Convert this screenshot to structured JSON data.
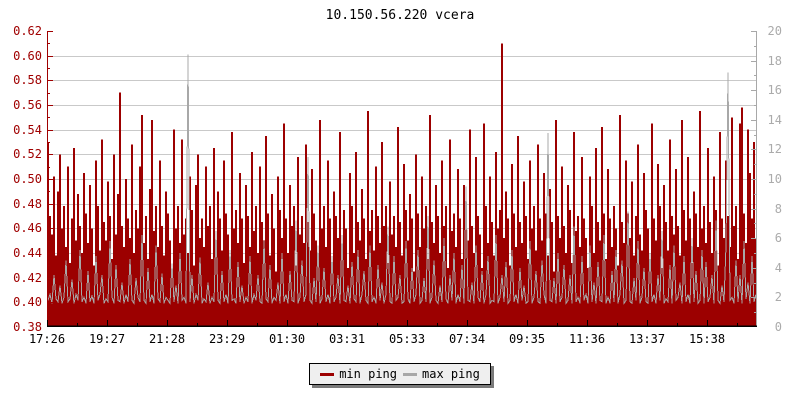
{
  "chart_data": {
    "type": "area+line",
    "title": "10.150.56.220 vcera",
    "left_axis": {
      "min": 0.38,
      "max": 0.62,
      "tick_step": 0.02,
      "minor_step": 0.01,
      "color": "#a00000",
      "labels": [
        "0.62",
        "0.60",
        "0.58",
        "0.56",
        "0.54",
        "0.52",
        "0.50",
        "0.48",
        "0.46",
        "0.44",
        "0.42",
        "0.40",
        "0.38"
      ]
    },
    "right_axis": {
      "min": 0,
      "max": 20,
      "tick_step": 2,
      "minor_step": 1,
      "color": "#ababab",
      "labels": [
        "20",
        "18",
        "16",
        "14",
        "12",
        "10",
        "8",
        "6",
        "4",
        "2",
        "0"
      ]
    },
    "x_axis": {
      "color": "#000000",
      "labels": [
        "17:26",
        "19:27",
        "21:28",
        "23:29",
        "01:30",
        "03:31",
        "05:33",
        "07:34",
        "09:35",
        "11:36",
        "13:37",
        "15:38"
      ],
      "label_spacing_px": 60
    },
    "grid": {
      "color": "#c9c9c9",
      "values": [
        0.4,
        0.42,
        0.44,
        0.46,
        0.48,
        0.5,
        0.52,
        0.54,
        0.56,
        0.58,
        0.6
      ]
    },
    "series": [
      {
        "name": "min ping",
        "axis": "left",
        "style": "area",
        "color": "#9c0000",
        "value_scale": 0.001,
        "values": [
          530,
          470,
          455,
          502,
          438,
          490,
          520,
          460,
          478,
          445,
          510,
          432,
          468,
          525,
          450,
          488,
          462,
          440,
          505,
          472,
          448,
          495,
          460,
          430,
          515,
          478,
          442,
          532,
          465,
          450,
          498,
          470,
          435,
          520,
          455,
          488,
          570,
          462,
          445,
          500,
          468,
          452,
          528,
          440,
          475,
          460,
          510,
          552,
          448,
          470,
          435,
          492,
          548,
          458,
          478,
          445,
          515,
          462,
          438,
          490,
          472,
          450,
          425,
          540,
          460,
          478,
          448,
          532,
          455,
          468,
          440,
          502,
          475,
          430,
          495,
          520,
          452,
          468,
          445,
          510,
          462,
          478,
          435,
          525,
          450,
          490,
          468,
          442,
          515,
          472,
          455,
          428,
          538,
          460,
          475,
          448,
          505,
          468,
          432,
          495,
          470,
          445,
          522,
          458,
          478,
          440,
          510,
          465,
          450,
          535,
          472,
          438,
          488,
          460,
          425,
          502,
          475,
          452,
          545,
          468,
          440,
          495,
          462,
          478,
          430,
          518,
          455,
          470,
          448,
          528,
          465,
          442,
          508,
          472,
          450,
          435,
          548,
          460,
          478,
          445,
          515,
          468,
          432,
          490,
          470,
          452,
          538,
          445,
          475,
          460,
          428,
          505,
          478,
          440,
          522,
          465,
          450,
          492,
          468,
          435,
          555,
          458,
          475,
          442,
          510,
          470,
          448,
          530,
          462,
          478,
          432,
          498,
          455,
          470,
          445,
          542,
          465,
          438,
          512,
          475,
          450,
          488,
          468,
          425,
          520,
          472,
          445,
          502,
          460,
          478,
          435,
          552,
          465,
          448,
          495,
          470,
          440,
          515,
          462,
          478,
          428,
          532,
          458,
          472,
          445,
          508,
          468,
          435,
          495,
          475,
          450,
          540,
          462,
          440,
          518,
          470,
          455,
          428,
          545,
          478,
          448,
          502,
          465,
          438,
          522,
          460,
          475,
          610,
          452,
          490,
          468,
          430,
          512,
          472,
          445,
          535,
          465,
          448,
          498,
          470,
          435,
          515,
          460,
          478,
          442,
          528,
          468,
          450,
          505,
          472,
          438,
          492,
          465,
          425,
          548,
          470,
          452,
          510,
          462,
          440,
          495,
          475,
          432,
          538,
          458,
          470,
          445,
          518,
          468,
          452,
          428,
          502,
          478,
          440,
          525,
          465,
          450,
          542,
          472,
          435,
          508,
          468,
          445,
          478,
          460,
          430,
          552,
          465,
          448,
          515,
          472,
          452,
          498,
          438,
          470,
          528,
          455,
          442,
          505,
          475,
          460,
          435,
          545,
          468,
          450,
          512,
          478,
          428,
          495,
          465,
          442,
          532,
          470,
          455,
          508,
          462,
          438,
          548,
          475,
          450,
          518,
          468,
          432,
          490,
          472,
          445,
          555,
          460,
          478,
          448,
          525,
          465,
          440,
          502,
          475,
          430,
          538,
          468,
          452,
          515,
          470,
          445,
          550,
          462,
          478,
          435,
          545,
          558,
          472,
          448,
          540,
          505,
          468,
          530,
          452
        ]
      },
      {
        "name": "max ping",
        "axis": "right",
        "style": "line",
        "color": "#a8a8a8",
        "value_scale": 0.1,
        "values": [
          18,
          22,
          16,
          35,
          19,
          17,
          28,
          16,
          20,
          45,
          17,
          19,
          32,
          16,
          22,
          18,
          52,
          17,
          20,
          16,
          38,
          17,
          21,
          16,
          48,
          18,
          22,
          35,
          16,
          19,
          17,
          58,
          20,
          16,
          42,
          18,
          17,
          30,
          16,
          22,
          17,
          46,
          18,
          16,
          33,
          20,
          17,
          62,
          18,
          16,
          40,
          17,
          22,
          16,
          55,
          19,
          17,
          36,
          16,
          20,
          18,
          16,
          43,
          17,
          28,
          16,
          50,
          18,
          20,
          16,
          184,
          17,
          35,
          16,
          22,
          18,
          47,
          16,
          19,
          17,
          30,
          16,
          20,
          17,
          65,
          18,
          16,
          38,
          17,
          22,
          16,
          52,
          18,
          19,
          16,
          44,
          17,
          28,
          16,
          20,
          17,
          48,
          16,
          22,
          18,
          35,
          17,
          16,
          58,
          19,
          17,
          42,
          16,
          20,
          18,
          30,
          16,
          50,
          17,
          22,
          16,
          38,
          18,
          17,
          72,
          16,
          20,
          45,
          17,
          22,
          115,
          18,
          16,
          33,
          17,
          55,
          16,
          19,
          40,
          17,
          22,
          16,
          48,
          17,
          20,
          35,
          16,
          62,
          18,
          17,
          28,
          16,
          44,
          19,
          17,
          52,
          16,
          22,
          38,
          18,
          16,
          55,
          17,
          20,
          16,
          42,
          18,
          30,
          16,
          22,
          68,
          17,
          16,
          48,
          18,
          20,
          35,
          16,
          17,
          58,
          19,
          16,
          40,
          17,
          22,
          52,
          16,
          18,
          33,
          17,
          75,
          16,
          20,
          45,
          18,
          16,
          28,
          17,
          60,
          19,
          16,
          35,
          18,
          50,
          16,
          22,
          17,
          42,
          16,
          95,
          18,
          17,
          30,
          16,
          55,
          20,
          17,
          38,
          16,
          22,
          48,
          16,
          18,
          17,
          62,
          16,
          20,
          35,
          17,
          44,
          16,
          18,
          52,
          17,
          22,
          16,
          40,
          18,
          28,
          16,
          17,
          58,
          16,
          20,
          38,
          17,
          16,
          45,
          22,
          16,
          131,
          18,
          17,
          33,
          16,
          50,
          17,
          20,
          42,
          16,
          18,
          35,
          16,
          68,
          17,
          20,
          16,
          48,
          18,
          22,
          16,
          55,
          17,
          30,
          16,
          44,
          18,
          17,
          62,
          16,
          20,
          16,
          38,
          17,
          52,
          16,
          22,
          45,
          16,
          18,
          78,
          17,
          16,
          33,
          18,
          58,
          16,
          20,
          40,
          17,
          16,
          50,
          17,
          22,
          16,
          35,
          18,
          65,
          16,
          19,
          17,
          42,
          16,
          55,
          18,
          20,
          30,
          16,
          48,
          17,
          22,
          16,
          60,
          17,
          38,
          16,
          18,
          52,
          16,
          44,
          17,
          20,
          35,
          16,
          72,
          18,
          16,
          28,
          17,
          55,
          172,
          18,
          20,
          16,
          45,
          17,
          35,
          16,
          58,
          19,
          30,
          16,
          48,
          17,
          22
        ]
      }
    ],
    "legend": [
      {
        "label": "min ping",
        "color": "#9c0000"
      },
      {
        "label": "max ping",
        "color": "#a8a8a8"
      }
    ]
  }
}
